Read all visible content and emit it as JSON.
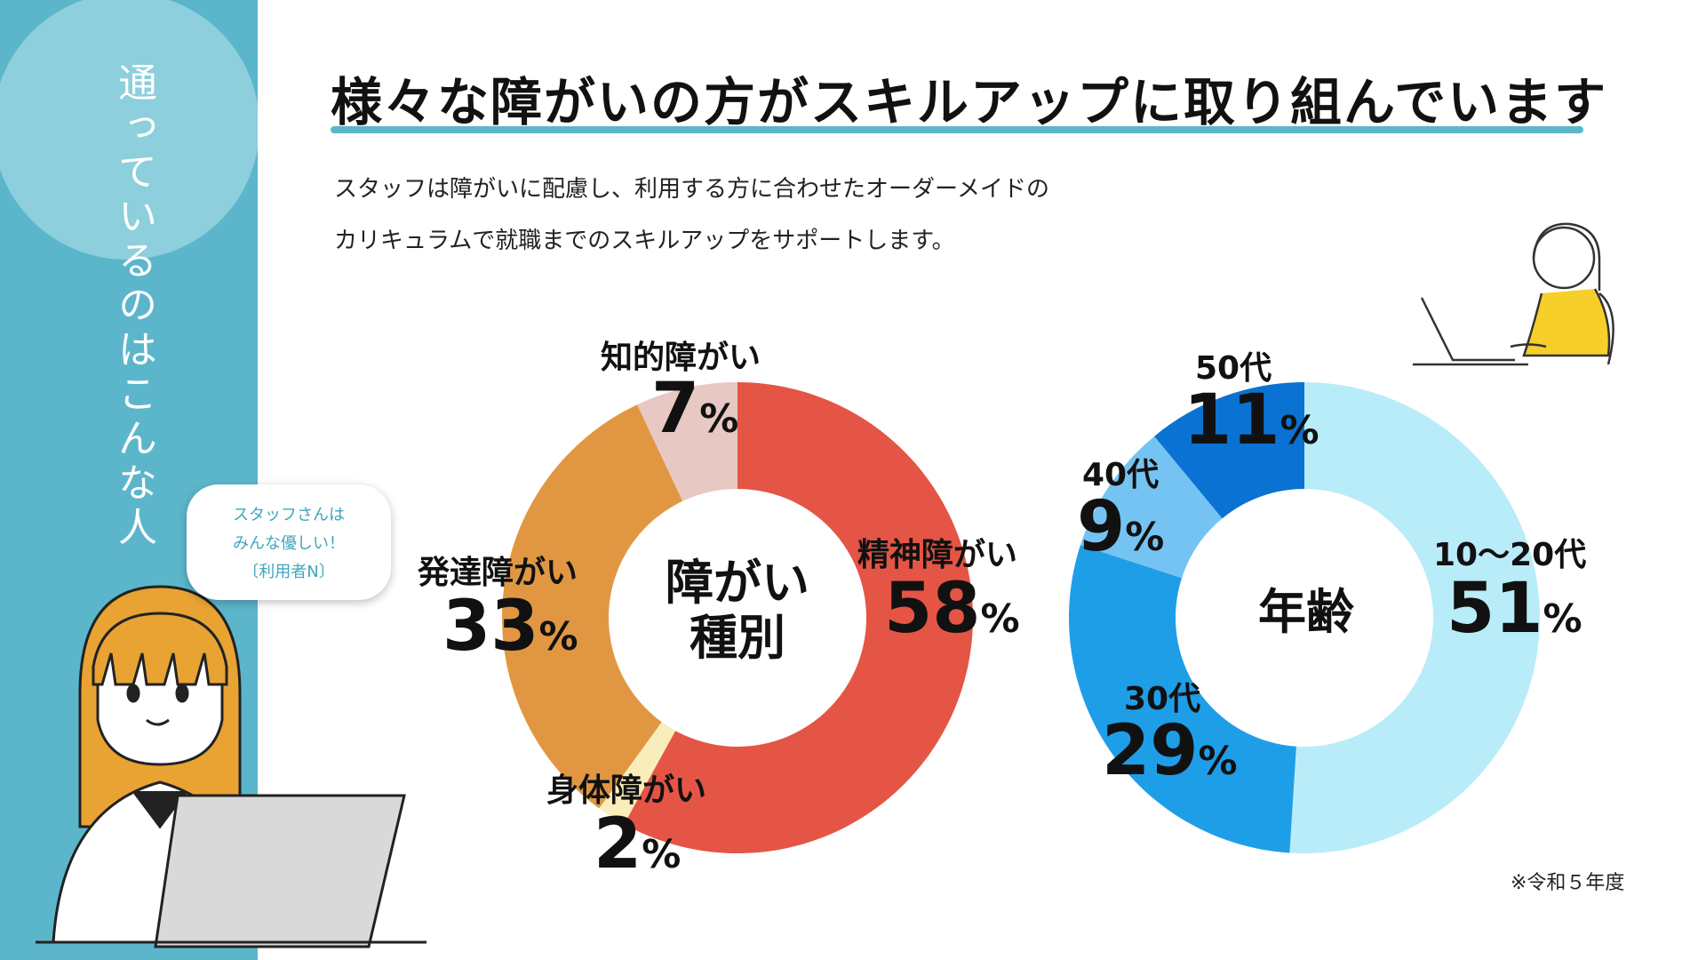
{
  "sidebar": {
    "text": "通っているのはこんな人"
  },
  "title": "様々な障がいの方がスキルアップに取り組んでいます",
  "description": [
    "スタッフは障がいに配慮し、利用する方に合わせたオーダーメイドの",
    "カリキュラムで就職までのスキルアップをサポートします。"
  ],
  "speech_bubble": [
    "スタッフさんは",
    "みんな優しい！",
    "〔利用者N〕"
  ],
  "note": "※令和５年度",
  "chart_data": [
    {
      "type": "pie",
      "title": "障がい種別",
      "title_lines": [
        "障がい",
        "種別"
      ],
      "unit": "%",
      "slices": [
        {
          "name": "精神障がい",
          "value": 58,
          "color": "#e45545"
        },
        {
          "name": "身体障がい",
          "value": 2,
          "color": "#f9eebb"
        },
        {
          "name": "発達障がい",
          "value": 33,
          "color": "#e19742"
        },
        {
          "name": "知的障がい",
          "value": 7,
          "color": "#e8c8c3"
        }
      ]
    },
    {
      "type": "pie",
      "title": "年齢",
      "title_lines": [
        "年齢"
      ],
      "unit": "%",
      "slices": [
        {
          "name": "10〜20代",
          "value": 51,
          "color": "#b9ecf9"
        },
        {
          "name": "30代",
          "value": 29,
          "color": "#1f9ee8"
        },
        {
          "name": "40代",
          "value": 9,
          "color": "#74c3f3"
        },
        {
          "name": "50代",
          "value": 11,
          "color": "#0a72d2"
        }
      ]
    }
  ]
}
